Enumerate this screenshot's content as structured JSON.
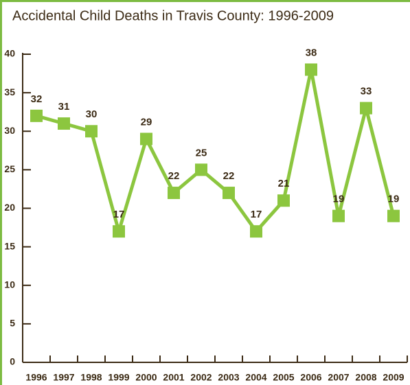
{
  "chart_data": {
    "type": "line",
    "title": "Accidental Child Deaths in Travis County: 1996-2009",
    "categories": [
      "1996",
      "1997",
      "1998",
      "1999",
      "2000",
      "2001",
      "2002",
      "2003",
      "2004",
      "2005",
      "2006",
      "2007",
      "2008",
      "2009"
    ],
    "series": [
      {
        "name": "Accidental Child Deaths",
        "color": "#8cc63f",
        "values": [
          32,
          31,
          30,
          17,
          29,
          22,
          25,
          22,
          17,
          21,
          38,
          19,
          33,
          19
        ]
      }
    ],
    "ylim": [
      0,
      40
    ],
    "yticks": [
      0,
      5,
      10,
      15,
      20,
      25,
      30,
      35,
      40
    ]
  }
}
